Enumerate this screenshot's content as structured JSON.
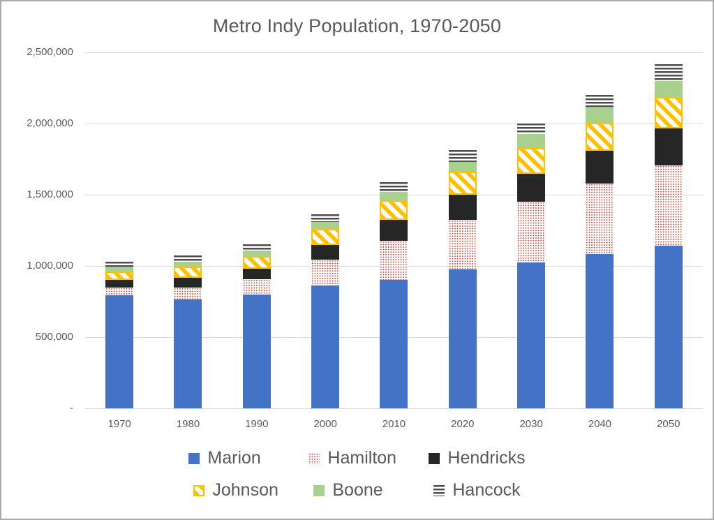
{
  "colors": {
    "marion_blue": "#4472C4",
    "hamilton_red": "#D23527",
    "hendricks_black": "#262626",
    "johnson_yellow": "#FFC000",
    "boone_green": "#A9D18E",
    "hancock_gray": "#4D4D4D",
    "axis_text": "#595959",
    "gridline": "#D9D9D9",
    "frame_border": "#ABABAB"
  },
  "chart_data": {
    "type": "bar",
    "stacked": true,
    "title": "Metro Indy Population, 1970-2050",
    "xlabel": "",
    "ylabel": "",
    "grid": true,
    "legend_position": "bottom",
    "categories": [
      "1970",
      "1980",
      "1990",
      "2000",
      "2010",
      "2020",
      "2030",
      "2040",
      "2050"
    ],
    "series": [
      {
        "name": "Marion",
        "pattern": "solid",
        "color": "#4472C4",
        "values": [
          792299,
          765233,
          797159,
          860454,
          903393,
          977203,
          1025000,
          1083000,
          1142000
        ]
      },
      {
        "name": "Hamilton",
        "pattern": "dots-red",
        "color": "#D23527",
        "values": [
          54532,
          82027,
          108936,
          182740,
          274569,
          347467,
          425000,
          495000,
          562000
        ]
      },
      {
        "name": "Hendricks",
        "pattern": "solid",
        "color": "#262626",
        "values": [
          53974,
          69804,
          75717,
          104093,
          145448,
          174788,
          195000,
          232000,
          264000
        ]
      },
      {
        "name": "Johnson",
        "pattern": "diagonal-yellow",
        "color": "#FFC000",
        "values": [
          61138,
          77240,
          88109,
          115209,
          139654,
          161765,
          185000,
          196000,
          217000
        ]
      },
      {
        "name": "Boone",
        "pattern": "solid",
        "color": "#A9D18E",
        "values": [
          30870,
          36446,
          38147,
          46107,
          56640,
          70812,
          97000,
          106000,
          112000
        ]
      },
      {
        "name": "Hancock",
        "pattern": "hlines-gray",
        "color": "#4D4D4D",
        "values": [
          35096,
          43939,
          45527,
          55391,
          70002,
          79840,
          75000,
          90000,
          121000
        ]
      }
    ],
    "y_axis": {
      "min": 0,
      "max": 2500000,
      "tick_interval": 500000,
      "tick_labels_top_to_bottom": [
        "2,500,000",
        "2,000,000",
        "1,500,000",
        "1,000,000",
        "500,000",
        "-"
      ]
    }
  }
}
